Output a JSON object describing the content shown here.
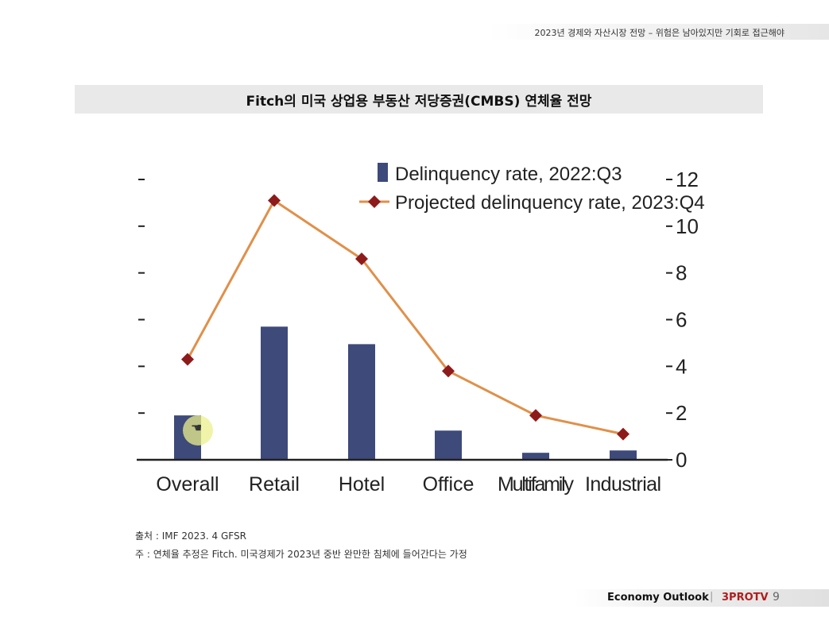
{
  "header": {
    "text": "2023년 경제와 자산시장 전망 – 위험은 남아있지만 기회로 접근해야"
  },
  "title": "Fitch의 미국 상업용 부동산 저당증권(CMBS) 연체율 전망",
  "chart_data": {
    "type": "bar",
    "categories": [
      "Overall",
      "Retail",
      "Hotel",
      "Office",
      "Multifamily",
      "Industrial"
    ],
    "series": [
      {
        "name": "Delinquency rate, 2022:Q3",
        "type": "bar",
        "color": "#3d4a7a",
        "values": [
          1.9,
          5.7,
          4.95,
          1.25,
          0.3,
          0.4
        ]
      },
      {
        "name": "Projected delinquency rate, 2023:Q4",
        "type": "line",
        "color": "#e0904a",
        "marker_color": "#8e1b1b",
        "values": [
          4.3,
          11.1,
          8.6,
          3.8,
          1.9,
          1.1
        ]
      }
    ],
    "ylim": [
      0,
      12
    ],
    "yticks": [
      0,
      2,
      4,
      6,
      8,
      10,
      12
    ],
    "ytick_labels": [
      "0",
      "2",
      "4",
      "6",
      "8",
      "10",
      "12"
    ],
    "y_axis_side": "right",
    "legend": "top-right",
    "grid": false
  },
  "source": {
    "line1": "출처 : IMF 2023. 4 GFSR",
    "line2": "주 : 연체율 추정은 Fitch. 미국경제가 2023년 중반 완만한 침체에 들어간다는 가정"
  },
  "footer": {
    "label": "Economy Outlook",
    "separator": "|",
    "brand": "3PROTV",
    "page": "9"
  }
}
